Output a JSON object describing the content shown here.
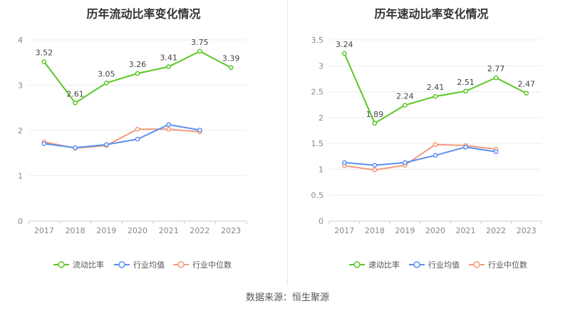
{
  "chart_data": [
    {
      "type": "line",
      "title": "历年流动比率变化情况",
      "categories": [
        "2017",
        "2018",
        "2019",
        "2020",
        "2021",
        "2022",
        "2023"
      ],
      "ylim": [
        0,
        4
      ],
      "yticks": [
        "0",
        "1",
        "2",
        "3",
        "4"
      ],
      "grid": true,
      "legend": "bottom",
      "series": [
        {
          "name": "流动比率",
          "color": "#5ac725",
          "values": [
            3.52,
            2.61,
            3.05,
            3.26,
            3.41,
            3.75,
            3.39
          ],
          "labels": [
            "3.52",
            "2.61",
            "3.05",
            "3.26",
            "3.41",
            "3.75",
            "3.39"
          ]
        },
        {
          "name": "行业均值",
          "color": "#5b8ff0",
          "values": [
            1.71,
            1.62,
            1.69,
            1.81,
            2.13,
            2.01,
            null
          ]
        },
        {
          "name": "行业中位数",
          "color": "#f59a7d",
          "values": [
            1.75,
            1.61,
            1.67,
            2.03,
            2.03,
            1.97,
            null
          ]
        }
      ]
    },
    {
      "type": "line",
      "title": "历年速动比率变化情况",
      "categories": [
        "2017",
        "2018",
        "2019",
        "2020",
        "2021",
        "2022",
        "2023"
      ],
      "ylim": [
        0,
        3.5
      ],
      "yticks": [
        "0",
        "0.5",
        "1",
        "1.5",
        "2",
        "2.5",
        "3",
        "3.5"
      ],
      "grid": true,
      "legend": "bottom",
      "series": [
        {
          "name": "速动比率",
          "color": "#5ac725",
          "values": [
            3.24,
            1.89,
            2.24,
            2.41,
            2.51,
            2.77,
            2.47
          ],
          "labels": [
            "3.24",
            "1.89",
            "2.24",
            "2.41",
            "2.51",
            "2.77",
            "2.47"
          ]
        },
        {
          "name": "行业均值",
          "color": "#5b8ff0",
          "values": [
            1.13,
            1.08,
            1.13,
            1.27,
            1.43,
            1.34,
            null
          ]
        },
        {
          "name": "行业中位数",
          "color": "#f59a7d",
          "values": [
            1.07,
            0.99,
            1.08,
            1.48,
            1.46,
            1.39,
            null
          ]
        }
      ]
    }
  ],
  "source": "数据来源：恒生聚源"
}
